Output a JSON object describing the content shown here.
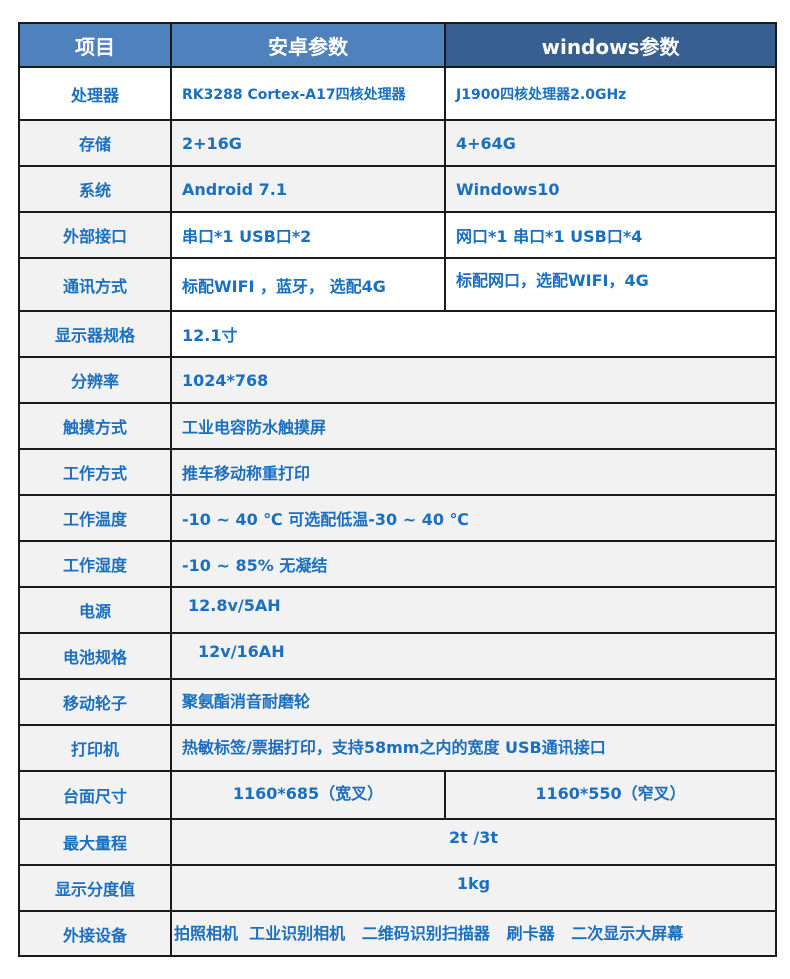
{
  "header": {
    "item": "项目",
    "android": "安卓参数",
    "windows": "windows参数"
  },
  "rows": [
    {
      "label": "处理器",
      "android": "RK3288 Cortex-A17四核处理器",
      "windows": "J1900四核处理器2.0GHz"
    },
    {
      "label": "存储",
      "android": "2+16G",
      "windows": "4+64G"
    },
    {
      "label": "系统",
      "android": "Android 7.1",
      "windows": "Windows10"
    },
    {
      "label": "外部接口",
      "android": "串口*1  USB口*2",
      "windows": "网口*1  串口*1  USB口*4"
    },
    {
      "label": "通讯方式",
      "android": "标配WIFI ，蓝牙， 选配4G",
      "windows": "标配网口，选配WIFI，4G"
    },
    {
      "label": "显示器规格",
      "value": "12.1寸"
    },
    {
      "label": "分辨率",
      "value": "1024*768"
    },
    {
      "label": "触摸方式",
      "value": "工业电容防水触摸屏"
    },
    {
      "label": "工作方式",
      "value": "推车移动称重打印"
    },
    {
      "label": "工作温度",
      "value": "-10  ~ 40 ℃   可选配低温-30 ~ 40 ℃"
    },
    {
      "label": "工作湿度",
      "value": "-10 ~ 85%   无凝结"
    },
    {
      "label": "电源",
      "value": "12.8v/5AH"
    },
    {
      "label": "电池规格",
      "value": "12v/16AH"
    },
    {
      "label": "移动轮子",
      "value": "聚氨酯消音耐磨轮"
    },
    {
      "label": "打印机",
      "value": "热敏标签/票据打印，支持58mm之内的宽度   USB通讯接口"
    },
    {
      "label": "台面尺寸",
      "android": "1160*685（宽叉）",
      "windows": "1160*550（窄叉）"
    },
    {
      "label": "最大量程",
      "value": "2t /3t"
    },
    {
      "label": "显示分度值",
      "value": "1kg"
    },
    {
      "label": "外接设备",
      "value": "拍照相机  工业识别相机   二维码识别扫描器   刷卡器   二次显示大屏幕"
    }
  ]
}
